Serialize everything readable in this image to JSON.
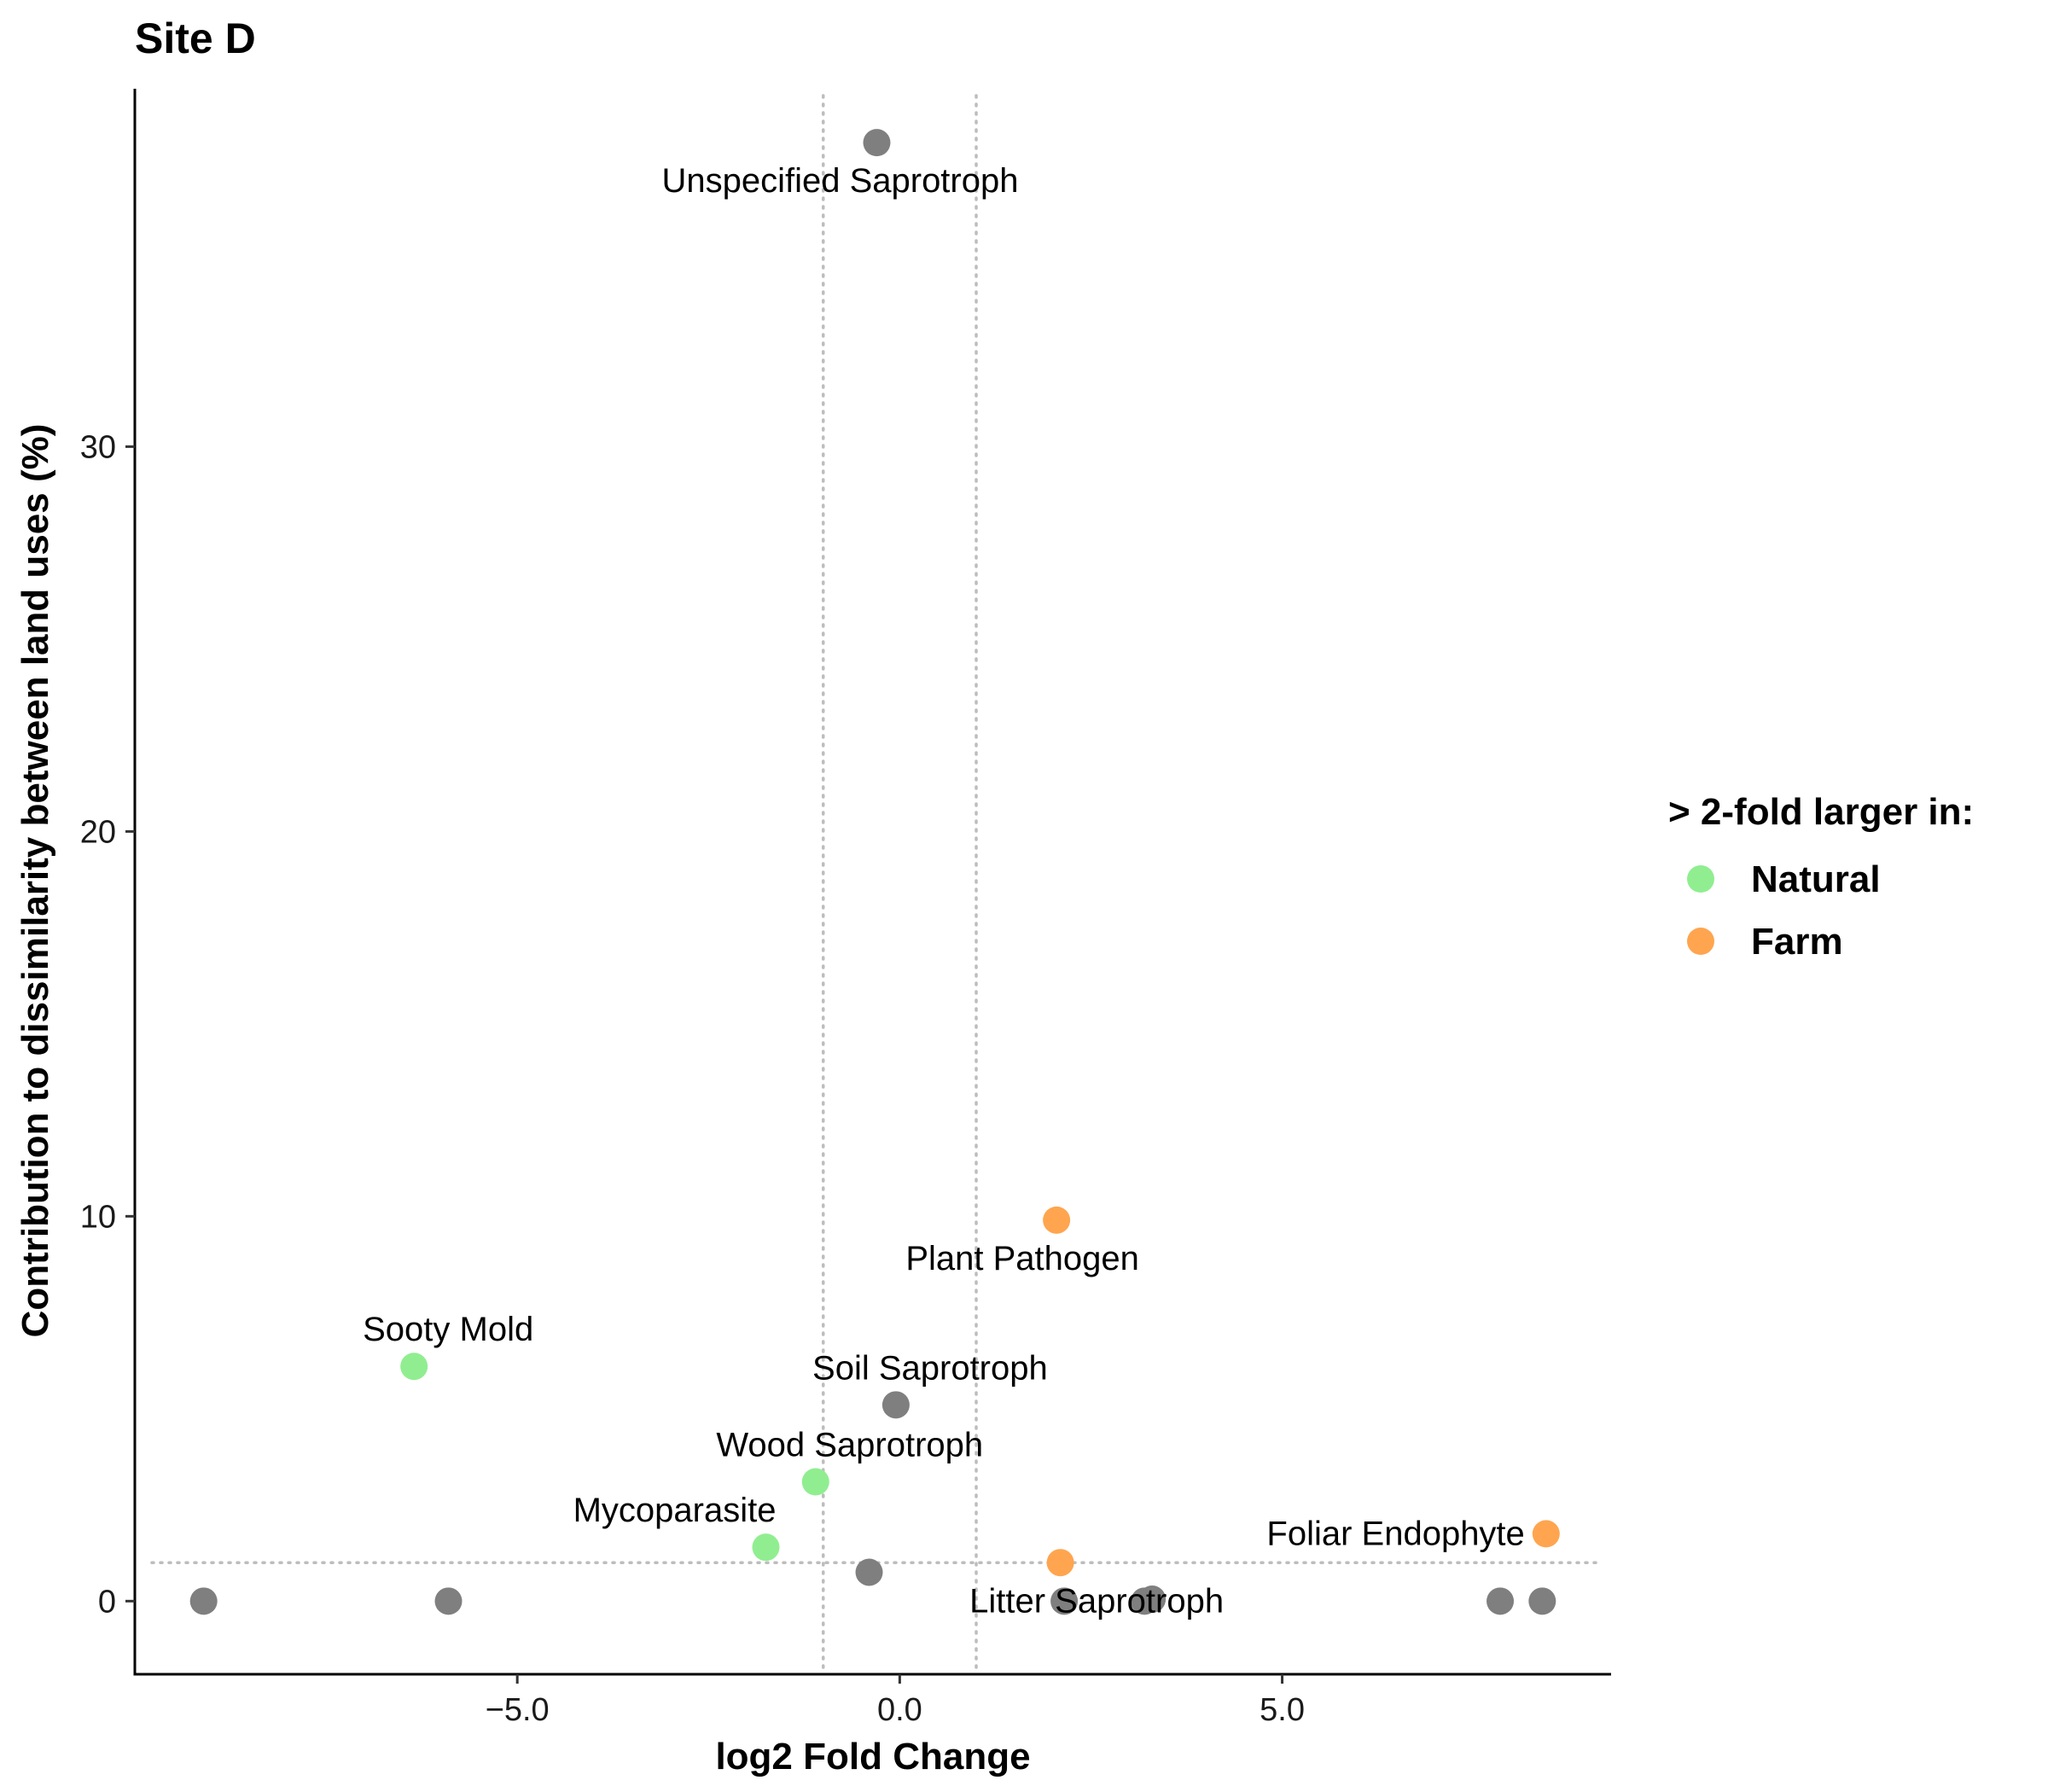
{
  "chart_data": {
    "type": "scatter",
    "title": "Site D",
    "xlabel": "log2 Fold Change",
    "ylabel": "Contribution to dissimilarity between land uses (%)",
    "xlim": [
      -10.0,
      9.3
    ],
    "ylim": [
      -1.9,
      39.3
    ],
    "xticks": [
      {
        "value": -5,
        "label": "−5.0"
      },
      {
        "value": 0,
        "label": "0.0"
      },
      {
        "value": 5,
        "label": "5.0"
      }
    ],
    "yticks": [
      {
        "value": 0,
        "label": "0"
      },
      {
        "value": 10,
        "label": "10"
      },
      {
        "value": 20,
        "label": "20"
      },
      {
        "value": 30,
        "label": "30"
      }
    ],
    "reference_lines": {
      "vertical_x": [
        -1,
        1
      ],
      "horizontal_y": [
        1
      ]
    },
    "legend": {
      "title": "> 2-fold larger in:",
      "position": "right",
      "entries": [
        {
          "label": "Natural",
          "color": "#90EE90"
        },
        {
          "label": "Farm",
          "color": "#FFA54F"
        }
      ]
    },
    "colors": {
      "Natural": "#90EE90",
      "Farm": "#FFA54F",
      "none": "#7F7F7F"
    },
    "points": [
      {
        "x": -0.3,
        "y": 37.9,
        "group": "none",
        "label": "Unspecified Saprotroph"
      },
      {
        "x": 2.05,
        "y": 9.9,
        "group": "Farm",
        "label": "Plant Pathogen"
      },
      {
        "x": -6.35,
        "y": 6.1,
        "group": "Natural",
        "label": "Sooty Mold"
      },
      {
        "x": -0.05,
        "y": 5.1,
        "group": "none",
        "label": "Soil Saprotroph"
      },
      {
        "x": -1.1,
        "y": 3.1,
        "group": "Natural",
        "label": "Wood Saprotroph"
      },
      {
        "x": -1.75,
        "y": 1.4,
        "group": "Natural",
        "label": "Mycoparasite"
      },
      {
        "x": 8.45,
        "y": 1.75,
        "group": "Farm",
        "label": "Foliar Endophyte"
      },
      {
        "x": 2.1,
        "y": 1.0,
        "group": "Farm",
        "label": ""
      },
      {
        "x": -0.4,
        "y": 0.75,
        "group": "none",
        "label": ""
      },
      {
        "x": 2.15,
        "y": 0.0,
        "group": "none",
        "label": "Litter Saprotroph"
      },
      {
        "x": 3.2,
        "y": 0.0,
        "group": "none",
        "label": ""
      },
      {
        "x": 3.3,
        "y": 0.05,
        "group": "none",
        "label": ""
      },
      {
        "x": -9.1,
        "y": 0.0,
        "group": "none",
        "label": ""
      },
      {
        "x": -5.9,
        "y": 0.0,
        "group": "none",
        "label": ""
      },
      {
        "x": 7.85,
        "y": 0.0,
        "group": "none",
        "label": ""
      },
      {
        "x": 8.4,
        "y": 0.0,
        "group": "none",
        "label": ""
      }
    ]
  }
}
